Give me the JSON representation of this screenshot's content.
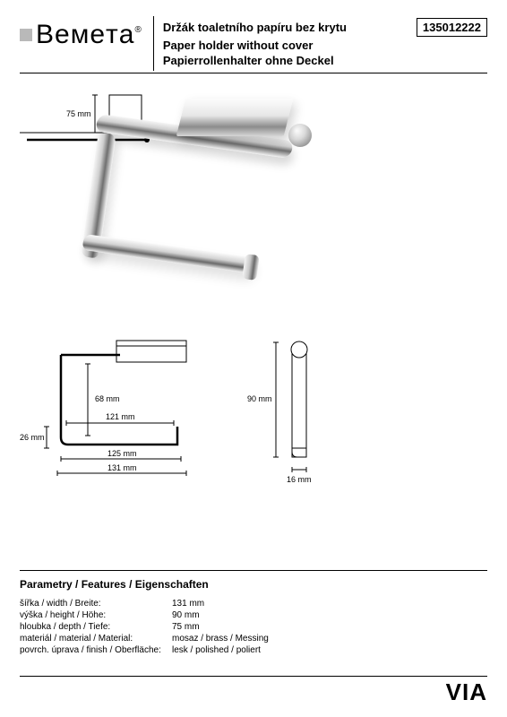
{
  "header": {
    "logo_text": "BEMETA",
    "title_cs": "Držák toaletního papíru bez krytu",
    "title_en": "Paper holder without cover",
    "title_de": "Papierrollenhalter ohne Deckel",
    "sku": "135012222"
  },
  "diagrams": {
    "top_right": {
      "dim1": "75 mm"
    },
    "front": {
      "dim_inner_h": "68 mm",
      "dim_inner_w": "121 mm",
      "dim_side_h": "26 mm",
      "dim_base_w": "125 mm",
      "dim_total_w": "131 mm"
    },
    "side": {
      "dim_h": "90 mm",
      "dim_w": "16 mm"
    }
  },
  "features": {
    "heading": "Parametry / Features / Eigenschaften",
    "rows": [
      {
        "label": "šířka / width / Breite:",
        "value": "131 mm"
      },
      {
        "label": "výška / height / Höhe:",
        "value": "90 mm"
      },
      {
        "label": "hloubka / depth / Tiefe:",
        "value": "75 mm"
      },
      {
        "label": "materiál / material / Material:",
        "value": "mosaz / brass / Messing"
      },
      {
        "label": "povrch. úprava / finish / Oberfläche:",
        "value": "lesk / polished / poliert"
      }
    ]
  },
  "footer": {
    "series": "VIA"
  },
  "style": {
    "text_color": "#000000",
    "bg_color": "#ffffff",
    "line_color": "#000000"
  }
}
